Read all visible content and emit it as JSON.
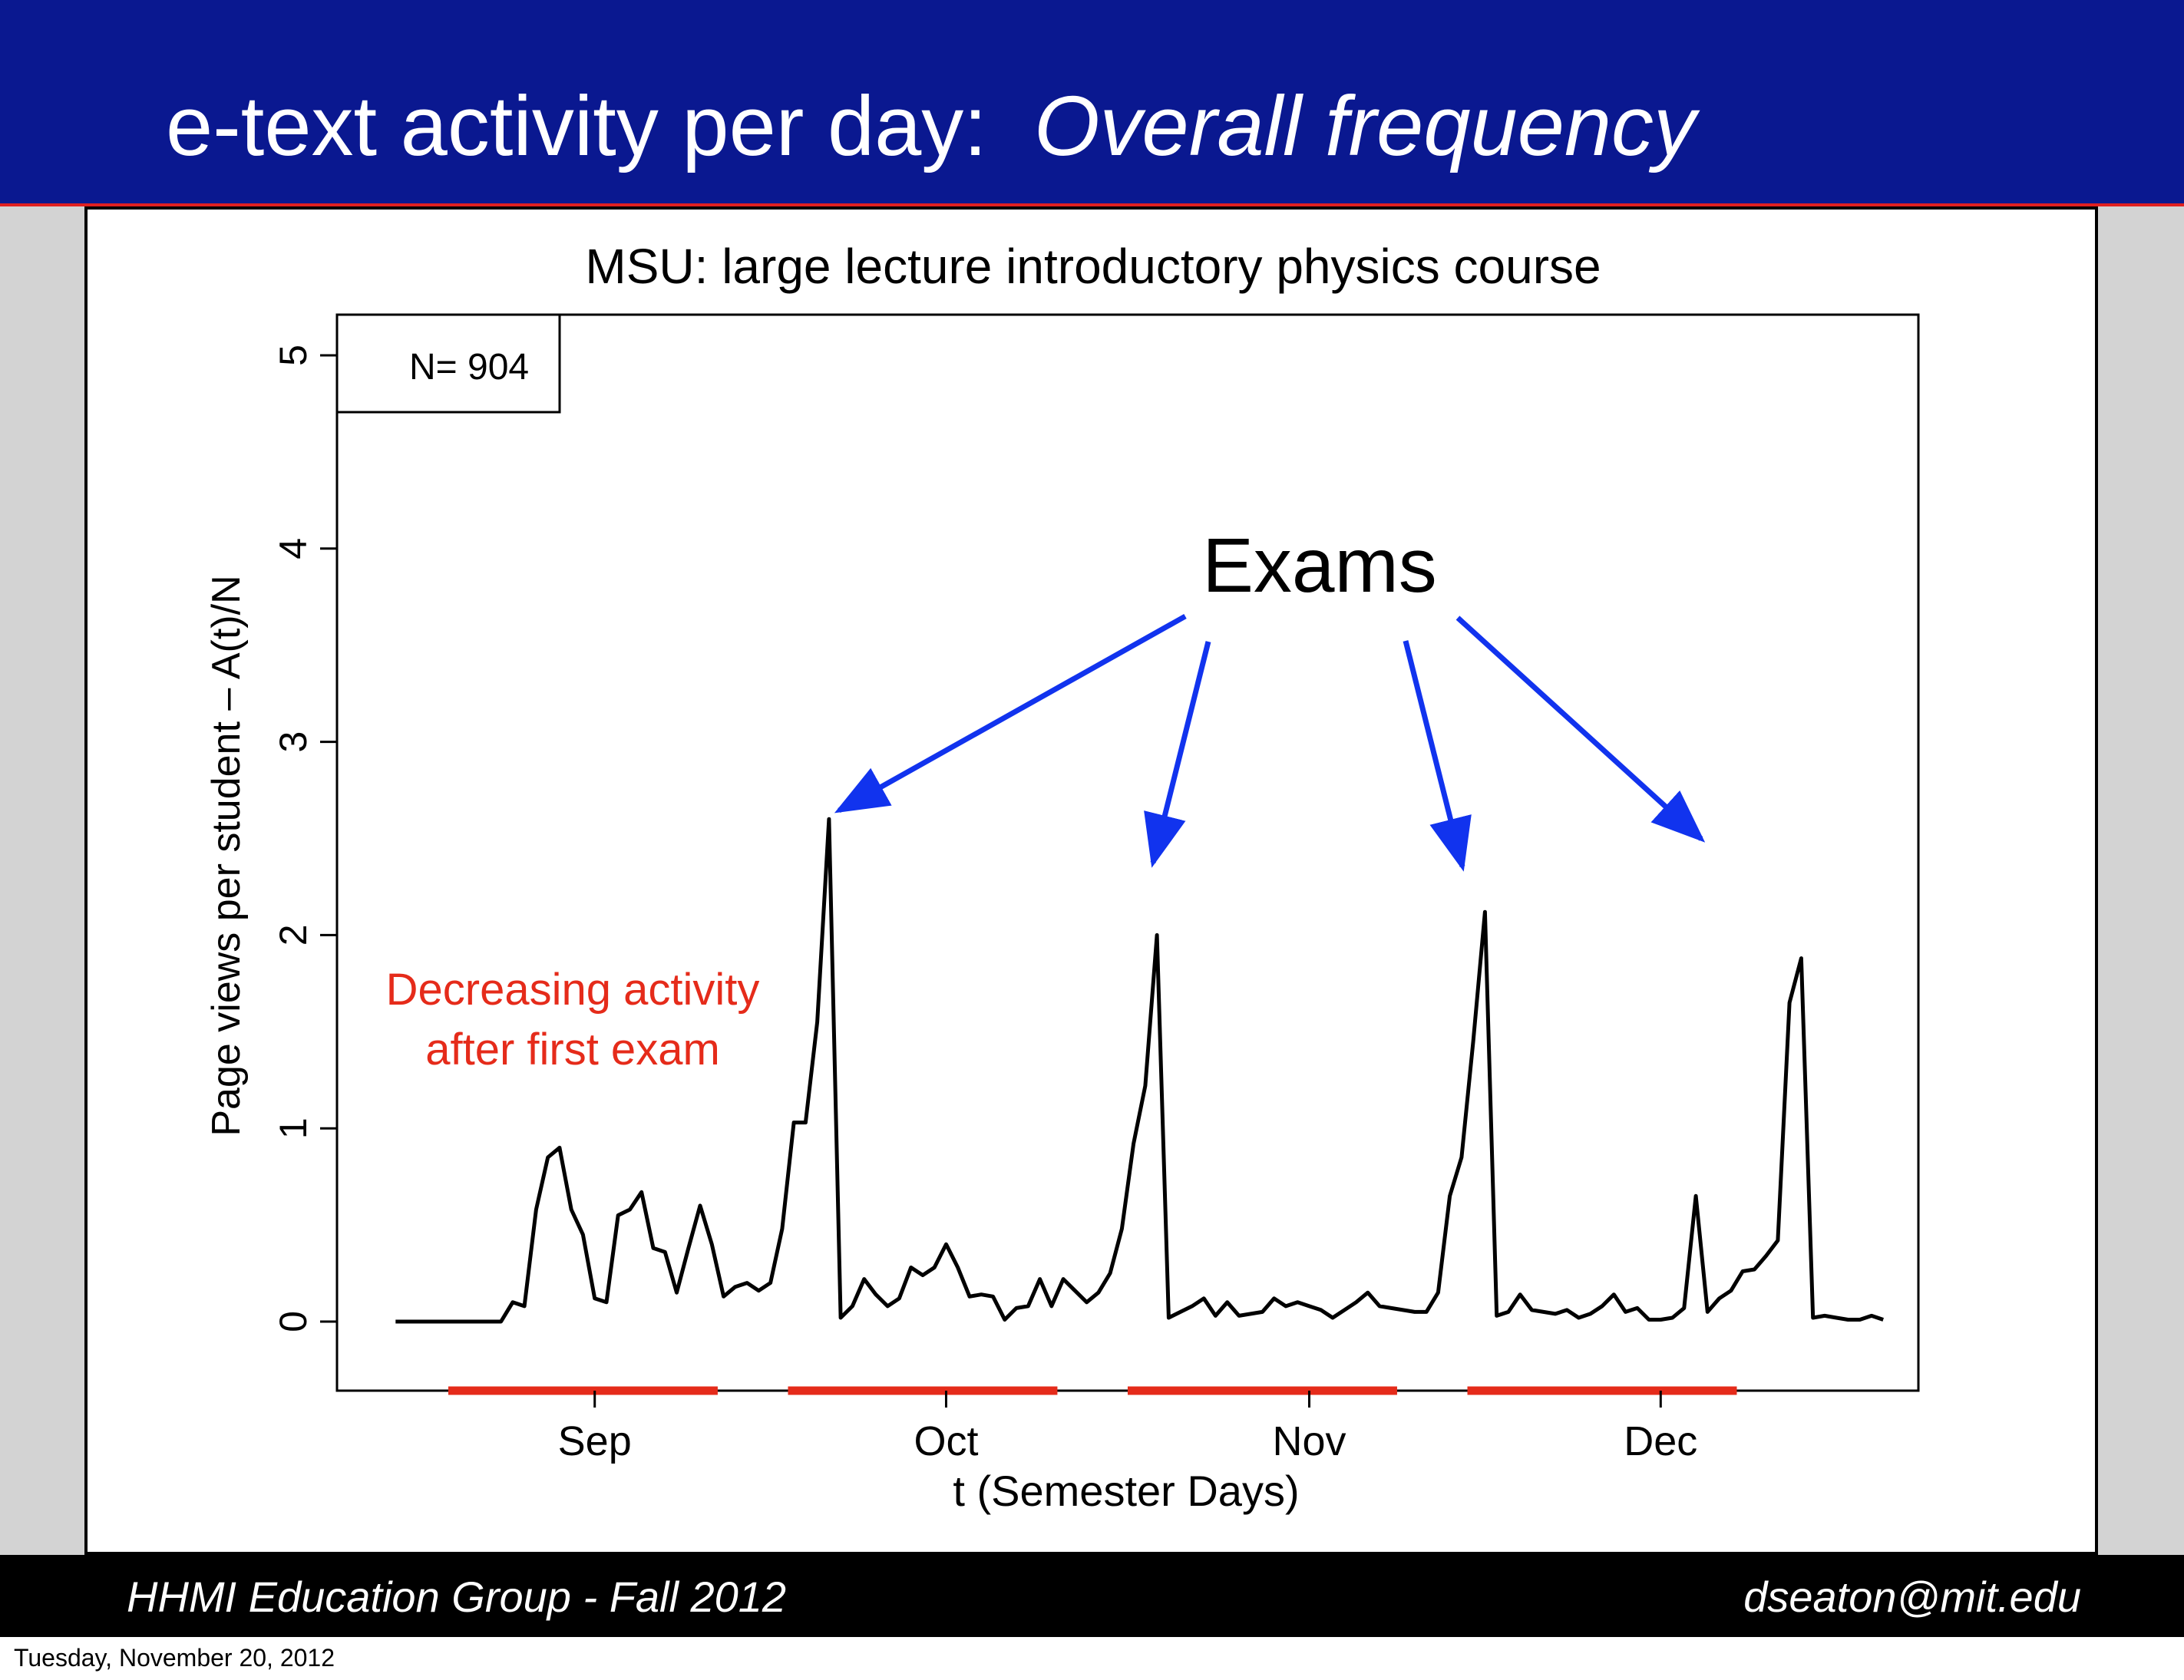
{
  "slide": {
    "title_plain": "e-text activity per day:",
    "title_italic": "Overall frequency"
  },
  "footer": {
    "left": "HHMI Education Group - Fall 2012",
    "right": "dseaton@mit.edu"
  },
  "date_stamp": "Tuesday, November 20, 2012",
  "colors": {
    "header_bg": "#0a1890",
    "accent_red": "#e52b1a",
    "arrow_blue": "#1133ee",
    "series": "#000000"
  },
  "chart_data": {
    "type": "line",
    "title": "MSU: large lecture introductory physics course",
    "xlabel": "t (Semester Days)",
    "ylabel": "Page views per student – A(t)/N",
    "ylim": [
      0,
      5
    ],
    "xlim": [
      -5,
      130
    ],
    "y_ticks": [
      0,
      1,
      2,
      3,
      4,
      5
    ],
    "x_ticks": [
      {
        "label": "Sep",
        "value": 17
      },
      {
        "label": "Oct",
        "value": 47
      },
      {
        "label": "Nov",
        "value": 78
      },
      {
        "label": "Dec",
        "value": 108
      }
    ],
    "legend_box": "N= 904",
    "grid": false,
    "series": [
      {
        "x": [
          0,
          1,
          2,
          3,
          4,
          5,
          6,
          7,
          8,
          9,
          10,
          11,
          12,
          13,
          14,
          15,
          16,
          17,
          18,
          19,
          20,
          21,
          22,
          23,
          24,
          25,
          26,
          27,
          28,
          29,
          30,
          31,
          32,
          33,
          34,
          35,
          36,
          37,
          38,
          39,
          40,
          41,
          42,
          43,
          44,
          45,
          46,
          47,
          48,
          49,
          50,
          51,
          52,
          53,
          54,
          55,
          56,
          57,
          58,
          59,
          60,
          61,
          62,
          63,
          64,
          65,
          66,
          67,
          68,
          69,
          70,
          71,
          72,
          73,
          74,
          75,
          76,
          77,
          78,
          79,
          80,
          81,
          82,
          83,
          84,
          85,
          86,
          87,
          88,
          89,
          90,
          91,
          92,
          93,
          94,
          95,
          96,
          97,
          98,
          99,
          100,
          101,
          102,
          103,
          104,
          105,
          106,
          107,
          108,
          109,
          110,
          111,
          112,
          113,
          114,
          115,
          116,
          117,
          118,
          119,
          120,
          121,
          122,
          123,
          124,
          125,
          126,
          127
        ],
        "y": [
          0,
          0,
          0,
          0,
          0,
          0,
          0,
          0,
          0,
          0,
          0.1,
          0.08,
          0.58,
          0.85,
          0.9,
          0.58,
          0.45,
          0.12,
          0.1,
          0.55,
          0.58,
          0.67,
          0.38,
          0.36,
          0.15,
          0.38,
          0.6,
          0.4,
          0.13,
          0.18,
          0.2,
          0.16,
          0.2,
          0.48,
          1.03,
          1.03,
          1.55,
          2.6,
          0.02,
          0.08,
          0.22,
          0.14,
          0.08,
          0.12,
          0.28,
          0.24,
          0.28,
          0.4,
          0.28,
          0.13,
          0.14,
          0.13,
          0.01,
          0.07,
          0.08,
          0.22,
          0.08,
          0.22,
          0.16,
          0.1,
          0.15,
          0.25,
          0.48,
          0.92,
          1.22,
          2.0,
          0.02,
          0.05,
          0.08,
          0.12,
          0.03,
          0.1,
          0.03,
          0.04,
          0.05,
          0.12,
          0.08,
          0.1,
          0.08,
          0.06,
          0.02,
          0.06,
          0.1,
          0.15,
          0.08,
          0.07,
          0.06,
          0.05,
          0.05,
          0.15,
          0.65,
          0.85,
          1.45,
          2.12,
          0.03,
          0.05,
          0.14,
          0.06,
          0.05,
          0.04,
          0.06,
          0.02,
          0.04,
          0.08,
          0.14,
          0.05,
          0.07,
          0.01,
          0.01,
          0.02,
          0.07,
          0.65,
          0.05,
          0.12,
          0.16,
          0.26,
          0.27,
          0.34,
          0.42,
          1.65,
          1.88,
          0.02,
          0.03,
          0.02,
          0.01,
          0.01,
          0.03,
          0.01
        ]
      }
    ],
    "exam_periods": [
      [
        4.5,
        27.5
      ],
      [
        33.5,
        56.5
      ],
      [
        62.5,
        85.5
      ],
      [
        91.5,
        114.5
      ]
    ],
    "annotations": {
      "exams_label": "Exams",
      "decreasing_line1": "Decreasing activity",
      "decreasing_line2": "after first exam"
    }
  }
}
